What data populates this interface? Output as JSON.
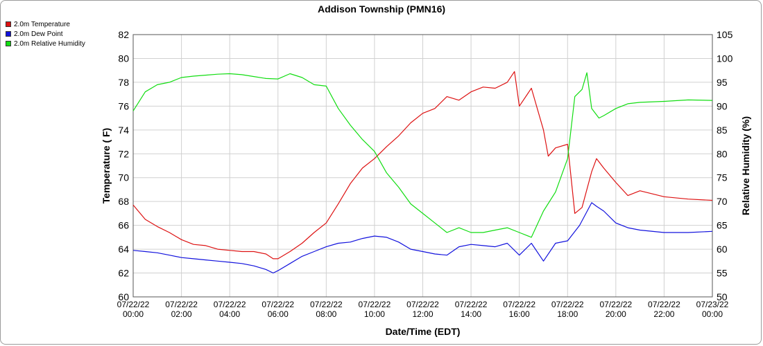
{
  "chart_data": {
    "type": "line",
    "title": "Addison Township (PMN16)",
    "xlabel": "Date/Time (EDT)",
    "ylabel_left": "Temperature ( F)",
    "ylabel_right": "Relative Humidity (%)",
    "ylim_left": [
      60,
      82
    ],
    "ylim_right": [
      50,
      105
    ],
    "yticks_left": [
      "60",
      "62",
      "64",
      "66",
      "68",
      "70",
      "72",
      "74",
      "76",
      "78",
      "80",
      "82"
    ],
    "yticks_right": [
      "50",
      "55",
      "60",
      "65",
      "70",
      "75",
      "80",
      "85",
      "90",
      "95",
      "100",
      "105"
    ],
    "xticks": [
      [
        "07/22/22",
        "00:00"
      ],
      [
        "07/22/22",
        "02:00"
      ],
      [
        "07/22/22",
        "04:00"
      ],
      [
        "07/22/22",
        "06:00"
      ],
      [
        "07/22/22",
        "08:00"
      ],
      [
        "07/22/22",
        "10:00"
      ],
      [
        "07/22/22",
        "12:00"
      ],
      [
        "07/22/22",
        "14:00"
      ],
      [
        "07/22/22",
        "16:00"
      ],
      [
        "07/22/22",
        "18:00"
      ],
      [
        "07/22/22",
        "20:00"
      ],
      [
        "07/22/22",
        "22:00"
      ],
      [
        "07/23/22",
        "00:00"
      ]
    ],
    "grid": true,
    "legend_position": "top-left",
    "series": [
      {
        "name": "2.0m Temperature",
        "axis": "left",
        "color": "#dd1111",
        "x": [
          0,
          0.5,
          1,
          1.5,
          2,
          2.5,
          3,
          3.5,
          4,
          4.5,
          5,
          5.5,
          5.8,
          6,
          6.5,
          7,
          7.5,
          8,
          8.5,
          9,
          9.5,
          10,
          10.5,
          11,
          11.5,
          12,
          12.5,
          13,
          13.5,
          14,
          14.5,
          15,
          15.5,
          15.8,
          16,
          16.5,
          17,
          17.2,
          17.5,
          18,
          18.3,
          18.6,
          19,
          19.2,
          19.5,
          20,
          20.5,
          21,
          22,
          23,
          24
        ],
        "y": [
          67.7,
          66.5,
          65.9,
          65.4,
          64.8,
          64.4,
          64.3,
          64.0,
          63.9,
          63.8,
          63.8,
          63.6,
          63.2,
          63.2,
          63.8,
          64.5,
          65.4,
          66.2,
          67.8,
          69.5,
          70.8,
          71.6,
          72.6,
          73.5,
          74.6,
          75.4,
          75.8,
          76.8,
          76.5,
          77.2,
          77.6,
          77.5,
          78.0,
          78.9,
          76.0,
          77.5,
          74.0,
          71.8,
          72.5,
          72.8,
          67.0,
          67.5,
          70.5,
          71.6,
          70.8,
          69.6,
          68.5,
          68.9,
          68.4,
          68.2,
          68.1
        ]
      },
      {
        "name": "2.0m Dew Point",
        "axis": "left",
        "color": "#1111dd",
        "x": [
          0,
          0.5,
          1,
          1.5,
          2,
          2.5,
          3,
          3.5,
          4,
          4.5,
          5,
          5.5,
          5.8,
          6,
          6.5,
          7,
          7.5,
          8,
          8.5,
          9,
          9.5,
          10,
          10.5,
          11,
          11.5,
          12,
          12.5,
          13,
          13.5,
          14,
          14.5,
          15,
          15.5,
          16,
          16.5,
          17,
          17.5,
          18,
          18.5,
          19,
          19.2,
          19.5,
          20,
          20.5,
          21,
          22,
          23,
          24
        ],
        "y": [
          63.9,
          63.8,
          63.7,
          63.5,
          63.3,
          63.2,
          63.1,
          63.0,
          62.9,
          62.8,
          62.6,
          62.3,
          62.0,
          62.2,
          62.8,
          63.4,
          63.8,
          64.2,
          64.5,
          64.6,
          64.9,
          65.1,
          65.0,
          64.6,
          64.0,
          63.8,
          63.6,
          63.5,
          64.2,
          64.4,
          64.3,
          64.2,
          64.5,
          63.5,
          64.5,
          63.0,
          64.5,
          64.7,
          66.0,
          67.9,
          67.6,
          67.2,
          66.2,
          65.8,
          65.6,
          65.4,
          65.4,
          65.5
        ]
      },
      {
        "name": "2.0m Relative Humidity",
        "axis": "right",
        "color": "#11dd11",
        "x": [
          0,
          0.5,
          1,
          1.5,
          2,
          2.5,
          3,
          3.5,
          4,
          4.5,
          5,
          5.5,
          6,
          6.5,
          7,
          7.5,
          8,
          8.5,
          9,
          9.5,
          10,
          10.5,
          11,
          11.5,
          12,
          12.5,
          13,
          13.5,
          14,
          14.5,
          15,
          15.5,
          16,
          16.5,
          17,
          17.5,
          18,
          18.3,
          18.6,
          18.8,
          19,
          19.3,
          19.5,
          20,
          20.5,
          21,
          22,
          23,
          24
        ],
        "y": [
          89.0,
          93.0,
          94.5,
          95.0,
          96.0,
          96.3,
          96.5,
          96.7,
          96.8,
          96.6,
          96.2,
          95.8,
          95.7,
          96.8,
          96.0,
          94.5,
          94.2,
          89.5,
          86.0,
          83.0,
          80.5,
          76.0,
          73.0,
          69.5,
          67.5,
          65.5,
          63.5,
          64.5,
          63.5,
          63.5,
          64.0,
          64.5,
          63.5,
          62.5,
          68.0,
          72.0,
          79.0,
          92.0,
          93.5,
          97.0,
          89.5,
          87.5,
          88.0,
          89.5,
          90.5,
          90.8,
          91.0,
          91.3,
          91.2
        ]
      }
    ]
  }
}
